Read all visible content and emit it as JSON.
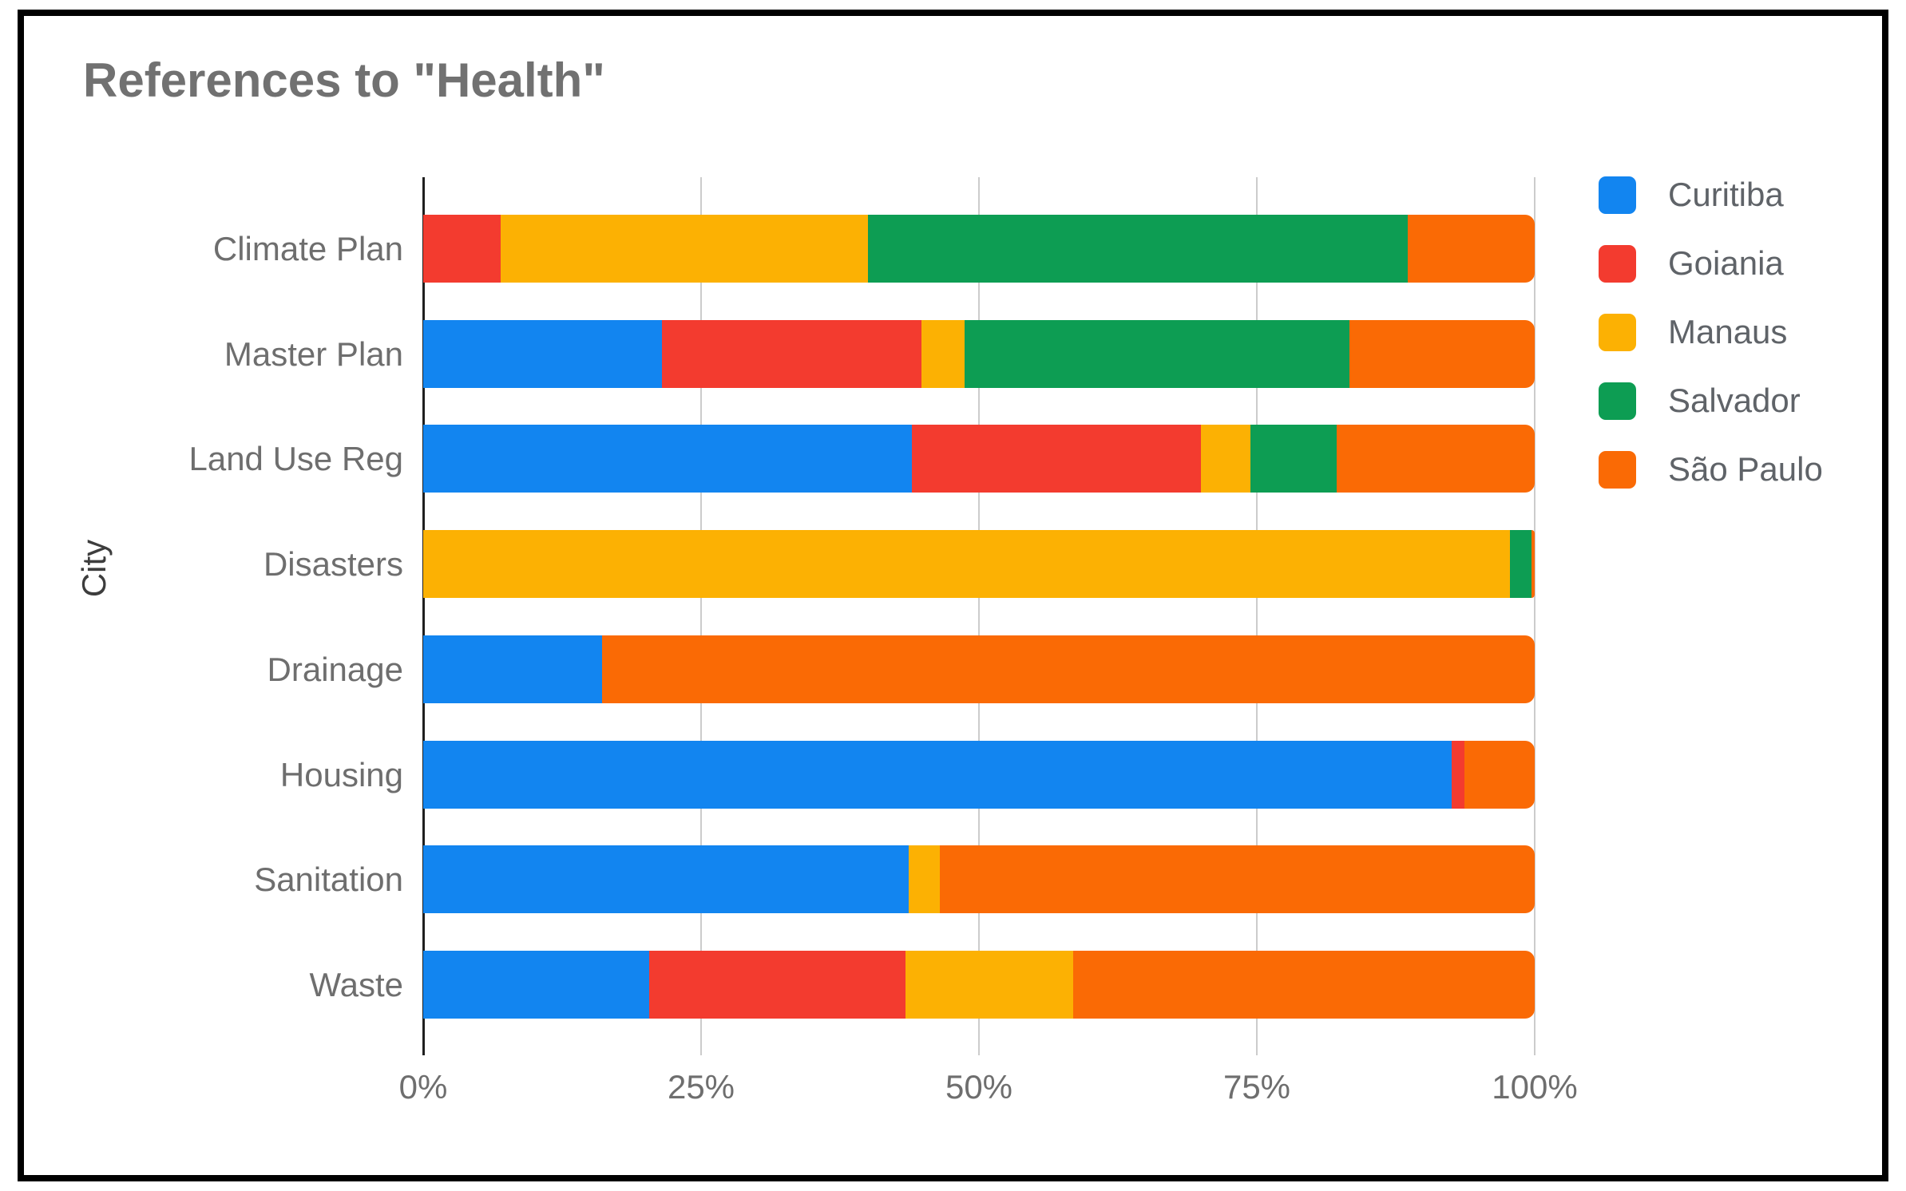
{
  "title": "References to \"Health\"",
  "y_axis_title": "City",
  "chart_data": {
    "type": "bar",
    "stacked": true,
    "orientation": "horizontal",
    "unit": "percent",
    "title": "References to \"Health\"",
    "xlabel": "",
    "ylabel": "City",
    "x_range": [
      0,
      100
    ],
    "x_ticks": [
      {
        "label": "0%",
        "value": 0
      },
      {
        "label": "25%",
        "value": 25
      },
      {
        "label": "50%",
        "value": 50
      },
      {
        "label": "75%",
        "value": 75
      },
      {
        "label": "100%",
        "value": 100
      }
    ],
    "grid": true,
    "legend_position": "right",
    "categories": [
      "Climate Plan",
      "Master Plan",
      "Land Use Reg",
      "Disasters",
      "Drainage",
      "Housing",
      "Sanitation",
      "Waste"
    ],
    "series": [
      {
        "name": "Curitiba",
        "color": "#1285F0",
        "values": [
          0,
          21.5,
          44.0,
          0,
          16.1,
          92.5,
          43.7,
          20.3
        ]
      },
      {
        "name": "Goiania",
        "color": "#F33B2F",
        "values": [
          7.0,
          23.3,
          26.0,
          0,
          0,
          1.2,
          0,
          23.1
        ]
      },
      {
        "name": "Manaus",
        "color": "#FCB103",
        "values": [
          33.0,
          3.9,
          4.4,
          97.8,
          0,
          0,
          2.8,
          15.1
        ]
      },
      {
        "name": "Salvador",
        "color": "#0D9D53",
        "values": [
          48.6,
          34.6,
          7.8,
          1.9,
          0,
          0,
          0,
          0
        ]
      },
      {
        "name": "São Paulo",
        "color": "#FA6A05",
        "values": [
          11.4,
          16.7,
          17.8,
          0.3,
          83.9,
          6.3,
          53.5,
          41.5
        ]
      }
    ]
  },
  "colors": {
    "axis": "#1f1f1f",
    "gridline": "#cccccc",
    "title_text": "#717171",
    "label_text": "#6e6e6e",
    "legend_text": "#5f6368"
  }
}
